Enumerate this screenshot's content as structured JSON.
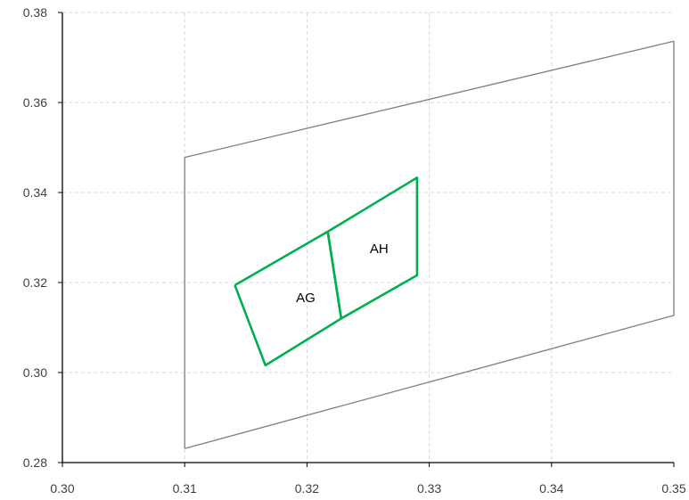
{
  "chart_data": {
    "type": "scatter",
    "title": "",
    "xlabel": "",
    "ylabel": "",
    "xlim": [
      0.3,
      0.35
    ],
    "ylim": [
      0.28,
      0.38
    ],
    "x_ticks": [
      "0.30",
      "0.31",
      "0.32",
      "0.33",
      "0.34",
      "0.35"
    ],
    "y_ticks": [
      "0.28",
      "0.30",
      "0.32",
      "0.34",
      "0.36",
      "0.38"
    ],
    "grid": true,
    "legend": "none",
    "colors": {
      "outer": "#7f7f7f",
      "region": "#00b050",
      "grid": "#d9d9d9",
      "axis": "#000000"
    },
    "series": [
      {
        "points": [
          [
            0.31,
            0.2831
          ],
          [
            0.35,
            0.3127
          ],
          [
            0.35,
            0.3736
          ],
          [
            0.31,
            0.3478
          ],
          [
            0.31,
            0.2831
          ]
        ]
      },
      {
        "label": "AG",
        "label_at": [
          0.3199,
          0.3166
        ],
        "points": [
          [
            0.3141,
            0.3194
          ],
          [
            0.3217,
            0.3313
          ],
          [
            0.3228,
            0.312
          ],
          [
            0.3166,
            0.3016
          ],
          [
            0.3141,
            0.3194
          ]
        ]
      },
      {
        "label": "AH",
        "label_at": [
          0.3259,
          0.3275
        ],
        "points": [
          [
            0.3217,
            0.3313
          ],
          [
            0.329,
            0.3433
          ],
          [
            0.329,
            0.3216
          ],
          [
            0.3228,
            0.312
          ],
          [
            0.3217,
            0.3313
          ]
        ]
      }
    ]
  }
}
